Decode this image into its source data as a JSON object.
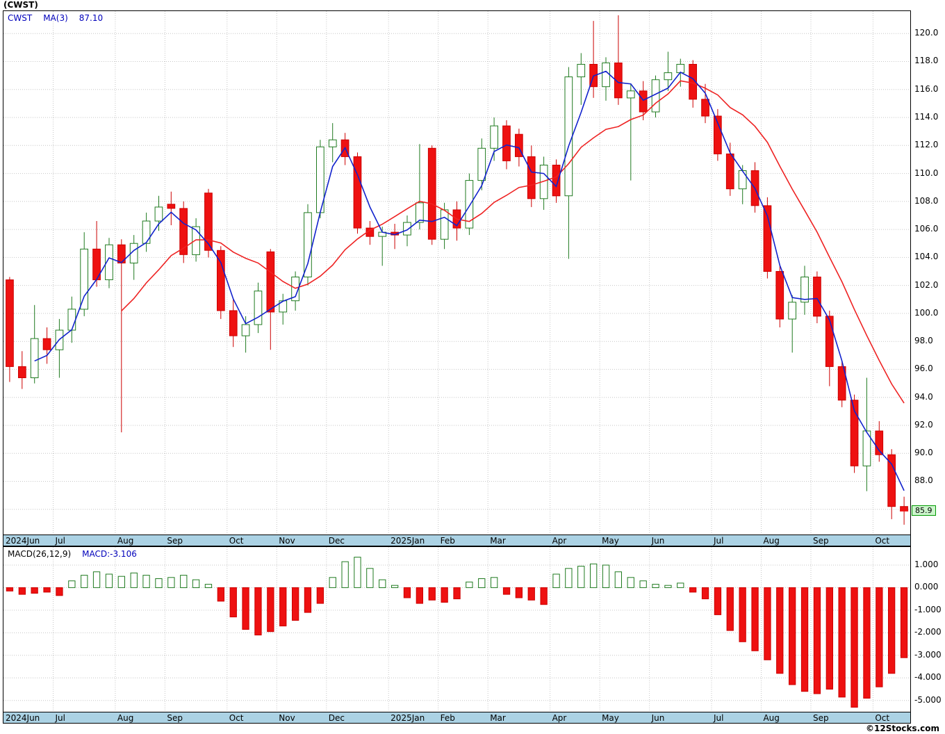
{
  "title": "(CWST)",
  "legend": {
    "symbol": "CWST",
    "ma_label": "MA(3)",
    "ma_value": "87.10"
  },
  "macd_header": {
    "label": "MACD(26,12,9)",
    "value": "MACD:-3.106"
  },
  "price_marker": "85.9",
  "copyright": "©12Stocks.com",
  "colors": {
    "up_fill": "#ffffff",
    "up_stroke": "#1f7a1f",
    "down_fill": "#ee1111",
    "down_stroke": "#cc0000",
    "ma_fast": "#1122cc",
    "ma_slow": "#ee2222",
    "grid": "#c6c6c6",
    "zero_line": "#c6c6c6",
    "band_bg": "#abd2e4",
    "legend_blue": "#0000bb",
    "marker_bg": "#ccf5cc",
    "marker_border": "#009900"
  },
  "months": [
    {
      "label": "2024Jun",
      "candle_index": 0
    },
    {
      "label": "Jul",
      "candle_index": 4
    },
    {
      "label": "Aug",
      "candle_index": 9
    },
    {
      "label": "Sep",
      "candle_index": 13
    },
    {
      "label": "Oct",
      "candle_index": 18
    },
    {
      "label": "Nov",
      "candle_index": 22
    },
    {
      "label": "Dec",
      "candle_index": 26
    },
    {
      "label": "2025Jan",
      "candle_index": 31
    },
    {
      "label": "Feb",
      "candle_index": 35
    },
    {
      "label": "Mar",
      "candle_index": 39
    },
    {
      "label": "Apr",
      "candle_index": 44
    },
    {
      "label": "May",
      "candle_index": 48
    },
    {
      "label": "Jun",
      "candle_index": 52
    },
    {
      "label": "Jul",
      "candle_index": 57
    },
    {
      "label": "Aug",
      "candle_index": 61
    },
    {
      "label": "Sep",
      "candle_index": 65
    },
    {
      "label": "Oct",
      "candle_index": 70
    }
  ],
  "chart_data": {
    "type": "candlestick",
    "symbol": "CWST",
    "interval": "weekly",
    "title": "(CWST)",
    "ma_fast_period": 3,
    "ma_slow_period": 10,
    "last_price": 85.9,
    "dates": [
      "2024-06-03",
      "2024-06-10",
      "2024-06-17",
      "2024-06-24",
      "2024-07-01",
      "2024-07-08",
      "2024-07-15",
      "2024-07-22",
      "2024-07-29",
      "2024-08-05",
      "2024-08-12",
      "2024-08-19",
      "2024-08-26",
      "2024-09-02",
      "2024-09-09",
      "2024-09-16",
      "2024-09-23",
      "2024-09-30",
      "2024-10-07",
      "2024-10-14",
      "2024-10-21",
      "2024-10-28",
      "2024-11-04",
      "2024-11-11",
      "2024-11-18",
      "2024-11-25",
      "2024-12-02",
      "2024-12-09",
      "2024-12-16",
      "2024-12-23",
      "2024-12-30",
      "2025-01-06",
      "2025-01-13",
      "2025-01-21",
      "2025-01-27",
      "2025-02-03",
      "2025-02-10",
      "2025-02-18",
      "2025-02-24",
      "2025-03-03",
      "2025-03-10",
      "2025-03-17",
      "2025-03-24",
      "2025-03-31",
      "2025-04-07",
      "2025-04-14",
      "2025-04-21",
      "2025-04-28",
      "2025-05-05",
      "2025-05-12",
      "2025-05-19",
      "2025-05-27",
      "2025-06-02",
      "2025-06-09",
      "2025-06-16",
      "2025-06-23",
      "2025-06-30",
      "2025-07-07",
      "2025-07-14",
      "2025-07-21",
      "2025-07-28",
      "2025-08-04",
      "2025-08-11",
      "2025-08-18",
      "2025-08-25",
      "2025-09-02",
      "2025-09-08",
      "2025-09-15",
      "2025-09-22",
      "2025-09-29",
      "2025-10-06",
      "2025-10-13",
      "2025-10-20"
    ],
    "open": [
      102.4,
      96.2,
      95.4,
      98.2,
      97.4,
      98.8,
      100.3,
      104.6,
      102.4,
      104.9,
      103.6,
      105.0,
      106.6,
      107.8,
      107.5,
      104.2,
      108.6,
      104.5,
      100.2,
      98.4,
      99.2,
      104.4,
      100.1,
      100.9,
      102.6,
      107.2,
      111.9,
      112.4,
      111.2,
      106.1,
      105.5,
      105.8,
      105.6,
      106.5,
      111.8,
      105.3,
      107.4,
      106.1,
      109.5,
      111.8,
      113.4,
      112.8,
      111.2,
      108.2,
      110.6,
      108.4,
      116.9,
      117.8,
      116.2,
      117.9,
      115.4,
      115.9,
      114.4,
      116.7,
      117.2,
      117.8,
      115.3,
      114.1,
      111.4,
      108.9,
      110.2,
      107.7,
      103.0,
      99.6,
      100.8,
      102.6,
      99.8,
      96.2,
      93.8,
      89.1,
      91.6,
      89.9,
      86.2
    ],
    "high": [
      102.6,
      97.3,
      100.6,
      99.0,
      99.6,
      101.2,
      105.8,
      106.6,
      105.4,
      105.3,
      105.6,
      107.2,
      108.4,
      108.7,
      108.0,
      106.8,
      108.9,
      104.8,
      101.0,
      99.8,
      102.2,
      104.6,
      101.4,
      103.0,
      107.8,
      112.4,
      113.6,
      112.9,
      111.5,
      106.6,
      106.2,
      106.4,
      107.0,
      112.1,
      112.0,
      107.9,
      108.0,
      110.0,
      112.5,
      114.0,
      113.8,
      113.2,
      112.0,
      111.2,
      111.0,
      117.6,
      118.6,
      120.9,
      118.3,
      121.3,
      116.4,
      116.6,
      117.0,
      118.7,
      118.2,
      118.1,
      116.4,
      114.6,
      112.2,
      110.6,
      110.8,
      108.3,
      103.4,
      101.3,
      103.4,
      103.0,
      100.2,
      96.6,
      94.2,
      95.4,
      92.3,
      90.3,
      86.9
    ],
    "low": [
      95.1,
      94.6,
      95.0,
      96.4,
      95.4,
      97.9,
      99.8,
      101.9,
      101.8,
      91.5,
      102.4,
      104.4,
      105.9,
      106.3,
      103.6,
      103.7,
      104.0,
      99.6,
      97.6,
      97.2,
      98.6,
      97.4,
      99.2,
      100.2,
      102.0,
      106.8,
      110.8,
      110.6,
      105.7,
      104.9,
      103.4,
      104.6,
      104.8,
      106.0,
      104.9,
      104.6,
      105.2,
      105.6,
      108.8,
      110.9,
      110.3,
      110.5,
      107.6,
      107.4,
      107.9,
      103.9,
      114.9,
      115.4,
      115.2,
      114.9,
      109.5,
      113.8,
      114.0,
      115.9,
      116.2,
      114.7,
      113.6,
      110.9,
      108.4,
      107.8,
      107.2,
      102.5,
      99.0,
      97.2,
      99.9,
      99.3,
      94.8,
      93.3,
      88.6,
      87.3,
      89.4,
      85.3,
      84.9
    ],
    "close": [
      96.2,
      95.4,
      98.2,
      97.4,
      98.8,
      100.3,
      104.6,
      102.4,
      104.9,
      103.6,
      105.0,
      106.6,
      107.6,
      107.5,
      104.2,
      106.2,
      104.5,
      100.2,
      98.4,
      99.2,
      101.6,
      100.1,
      100.9,
      102.6,
      107.2,
      111.9,
      112.4,
      111.2,
      106.1,
      105.5,
      105.8,
      105.6,
      106.5,
      107.9,
      105.3,
      107.4,
      106.1,
      109.5,
      111.8,
      113.4,
      110.9,
      111.2,
      108.2,
      110.6,
      108.4,
      116.9,
      117.8,
      116.2,
      117.9,
      115.4,
      115.9,
      114.4,
      116.7,
      117.2,
      117.8,
      115.3,
      114.1,
      111.4,
      108.9,
      110.2,
      107.7,
      103.0,
      99.6,
      100.8,
      102.6,
      99.8,
      96.2,
      93.8,
      89.1,
      91.6,
      89.9,
      86.2,
      85.9
    ],
    "price_axis": {
      "min": 84.2,
      "max": 121.6,
      "ticks": [
        "120.0",
        "118.0",
        "116.0",
        "114.0",
        "112.0",
        "110.0",
        "108.0",
        "106.0",
        "104.0",
        "102.0",
        "100.0",
        "98.0",
        "96.0",
        "94.0",
        "92.0",
        "90.0",
        "88.0",
        "86.0"
      ]
    },
    "macd": {
      "type": "bar",
      "label": "MACD(26,12,9)",
      "last_value": -3.106,
      "values": [
        -0.15,
        -0.3,
        -0.25,
        -0.2,
        -0.35,
        0.3,
        0.55,
        0.7,
        0.6,
        0.5,
        0.65,
        0.55,
        0.4,
        0.45,
        0.55,
        0.35,
        0.15,
        -0.6,
        -1.3,
        -1.85,
        -2.1,
        -1.95,
        -1.7,
        -1.45,
        -1.1,
        -0.7,
        0.45,
        1.15,
        1.35,
        0.85,
        0.35,
        0.1,
        -0.45,
        -0.7,
        -0.55,
        -0.65,
        -0.5,
        0.25,
        0.4,
        0.45,
        -0.3,
        -0.45,
        -0.55,
        -0.75,
        0.6,
        0.85,
        0.95,
        1.05,
        1.0,
        0.7,
        0.45,
        0.3,
        0.15,
        0.1,
        0.2,
        -0.2,
        -0.5,
        -1.2,
        -1.9,
        -2.4,
        -2.8,
        -3.2,
        -3.8,
        -4.3,
        -4.6,
        -4.7,
        -4.5,
        -4.85,
        -5.3,
        -4.9,
        -4.4,
        -3.8,
        -3.106
      ]
    },
    "macd_axis": {
      "min": -5.5,
      "max": 1.8,
      "ticks": [
        "1.000",
        "0.000",
        "-1.000",
        "-2.000",
        "-3.000",
        "-4.000",
        "-5.000"
      ]
    }
  }
}
